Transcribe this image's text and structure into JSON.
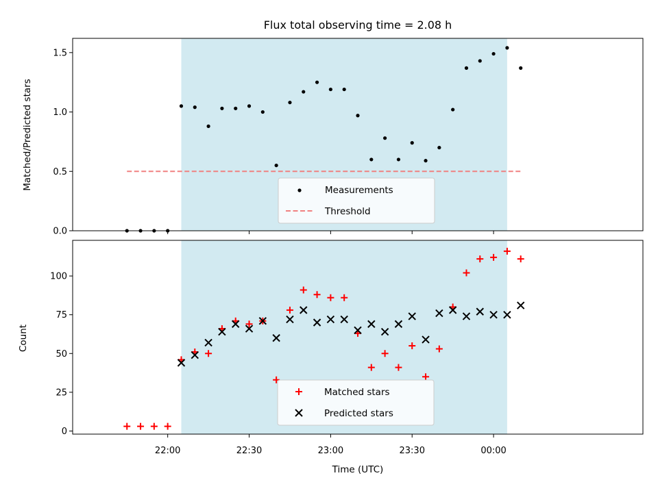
{
  "chart_data": [
    {
      "type": "scatter",
      "title": "Flux total observing time = 2.08 h",
      "xlabel": "",
      "ylabel": "Matched/Predicted stars",
      "ylim": [
        0,
        1.62
      ],
      "yticks": [
        0.0,
        0.5,
        1.0,
        1.5
      ],
      "ytick_labels": [
        "0.0",
        "0.5",
        "1.0",
        "1.5"
      ],
      "xlim_minutes_from_midnight": [
        -155,
        55
      ],
      "shaded_span_minutes": [
        -115,
        5
      ],
      "shade_color": "#add8e6",
      "legend": {
        "placement": "lower center",
        "entries": [
          "Measurements",
          "Threshold"
        ]
      },
      "series": [
        {
          "name": "Measurements",
          "marker": "dot",
          "color": "#000000",
          "x": [
            "21:45",
            "21:50",
            "21:55",
            "22:00",
            "22:05",
            "22:10",
            "22:15",
            "22:20",
            "22:25",
            "22:30",
            "22:35",
            "22:40",
            "22:45",
            "22:50",
            "22:55",
            "23:00",
            "23:05",
            "23:10",
            "23:15",
            "23:20",
            "23:25",
            "23:30",
            "23:35",
            "23:40",
            "23:45",
            "23:50",
            "23:55",
            "00:00",
            "00:05",
            "00:10"
          ],
          "y": [
            0,
            0,
            0,
            0,
            1.05,
            1.04,
            0.88,
            1.03,
            1.03,
            1.05,
            1.0,
            0.55,
            1.08,
            1.17,
            1.25,
            1.19,
            1.19,
            0.97,
            0.6,
            0.78,
            0.6,
            0.74,
            0.59,
            0.7,
            1.02,
            1.37,
            1.43,
            1.49,
            1.54,
            1.37
          ]
        },
        {
          "name": "Threshold",
          "marker": "dashed-line",
          "color": "#f08080",
          "x": [
            "21:45",
            "00:10"
          ],
          "y": [
            0.5,
            0.5
          ]
        }
      ]
    },
    {
      "type": "scatter",
      "title": "",
      "xlabel": "Time (UTC)",
      "ylabel": "Count",
      "ylim": [
        -2,
        123
      ],
      "yticks": [
        0,
        25,
        50,
        75,
        100
      ],
      "ytick_labels": [
        "0",
        "25",
        "50",
        "75",
        "100"
      ],
      "xticks_minutes_from_midnight": [
        -120,
        -90,
        -60,
        -30,
        0
      ],
      "xtick_labels": [
        "22:00",
        "22:30",
        "23:00",
        "23:30",
        "00:00"
      ],
      "xlim_minutes_from_midnight": [
        -155,
        55
      ],
      "shaded_span_minutes": [
        -115,
        5
      ],
      "shade_color": "#add8e6",
      "legend": {
        "placement": "lower center",
        "entries": [
          "Matched stars",
          "Predicted stars"
        ]
      },
      "series": [
        {
          "name": "Matched stars",
          "marker": "plus",
          "color": "#ff0000",
          "x": [
            "21:45",
            "21:50",
            "21:55",
            "22:00",
            "22:05",
            "22:10",
            "22:15",
            "22:20",
            "22:25",
            "22:30",
            "22:35",
            "22:40",
            "22:45",
            "22:50",
            "22:55",
            "23:00",
            "23:05",
            "23:10",
            "23:15",
            "23:20",
            "23:25",
            "23:30",
            "23:35",
            "23:40",
            "23:45",
            "23:50",
            "23:55",
            "00:00",
            "00:05",
            "00:10"
          ],
          "y": [
            3,
            3,
            3,
            3,
            46,
            51,
            50,
            66,
            71,
            69,
            71,
            33,
            78,
            91,
            88,
            86,
            86,
            63,
            41,
            50,
            41,
            55,
            35,
            53,
            80,
            102,
            111,
            112,
            116,
            111
          ]
        },
        {
          "name": "Predicted stars",
          "marker": "x",
          "color": "#000000",
          "x": [
            "22:05",
            "22:10",
            "22:15",
            "22:20",
            "22:25",
            "22:30",
            "22:35",
            "22:40",
            "22:45",
            "22:50",
            "22:55",
            "23:00",
            "23:05",
            "23:10",
            "23:15",
            "23:20",
            "23:25",
            "23:30",
            "23:35",
            "23:40",
            "23:45",
            "23:50",
            "23:55",
            "00:00",
            "00:05",
            "00:10"
          ],
          "y": [
            44,
            49,
            57,
            64,
            69,
            66,
            71,
            60,
            72,
            78,
            70,
            72,
            72,
            65,
            69,
            64,
            69,
            74,
            59,
            76,
            78,
            74,
            77,
            75,
            75,
            81
          ]
        }
      ]
    }
  ]
}
